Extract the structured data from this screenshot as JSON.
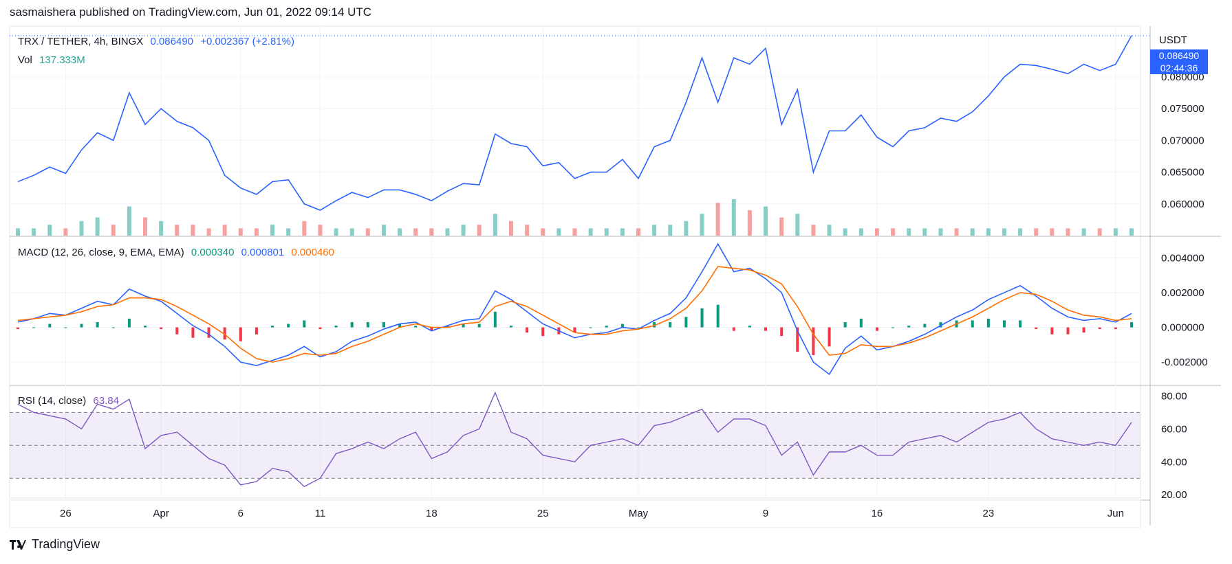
{
  "header": {
    "text": "sasmaishera published on TradingView.com, Jun 01, 2022 09:14 UTC"
  },
  "legend": {
    "symbol": "TRX / TETHER, 4h, BINGX",
    "last_price": "0.086490",
    "change": "+0.002367 (+2.81%)",
    "vol_label": "Vol",
    "vol_value": "137.333M",
    "macd_label": "MACD (12, 26, close, 9, EMA, EMA)",
    "macd_hist": "0.000340",
    "macd_line": "0.000801",
    "macd_signal": "0.000460",
    "rsi_label": "RSI (14, close)",
    "rsi_value": "63.84"
  },
  "price_axis": {
    "currency": "USDT",
    "price_tag": "0.086490",
    "countdown": "02:44:36"
  },
  "footer": {
    "brand": "TradingView"
  },
  "colors": {
    "price_line": "#2962ff",
    "macd_line": "#2962ff",
    "signal_line": "#ff6d00",
    "rsi_line": "#7e57c2",
    "hist_up": "#089981",
    "hist_down": "#f23645",
    "vol_up": "#26a69a",
    "vol_down": "#ef5350"
  },
  "chart_data": [
    {
      "type": "line",
      "name": "price",
      "x": [
        "Mar 23",
        "Mar 24",
        "Mar 25",
        "Mar 26",
        "Mar 27",
        "Mar 28",
        "Mar 29",
        "Mar 30",
        "Mar 31",
        "Apr 1",
        "Apr 2",
        "Apr 3",
        "Apr 4",
        "Apr 5",
        "Apr 6",
        "Apr 7",
        "Apr 8",
        "Apr 9",
        "Apr 10",
        "Apr 11",
        "Apr 12",
        "Apr 13",
        "Apr 14",
        "Apr 15",
        "Apr 16",
        "Apr 17",
        "Apr 18",
        "Apr 19",
        "Apr 20",
        "Apr 21",
        "Apr 22",
        "Apr 23",
        "Apr 24",
        "Apr 25",
        "Apr 26",
        "Apr 27",
        "Apr 28",
        "Apr 29",
        "Apr 30",
        "May 1",
        "May 2",
        "May 3",
        "May 4",
        "May 5",
        "May 6",
        "May 7",
        "May 8",
        "May 9",
        "May 10",
        "May 11",
        "May 12",
        "May 13",
        "May 14",
        "May 15",
        "May 16",
        "May 17",
        "May 18",
        "May 19",
        "May 20",
        "May 21",
        "May 22",
        "May 23",
        "May 24",
        "May 25",
        "May 26",
        "May 27",
        "May 28",
        "May 29",
        "May 30",
        "May 31",
        "Jun 1"
      ],
      "values": [
        0.0635,
        0.0645,
        0.0658,
        0.0648,
        0.0685,
        0.0712,
        0.07,
        0.0775,
        0.0725,
        0.075,
        0.073,
        0.072,
        0.07,
        0.0645,
        0.0625,
        0.0615,
        0.0635,
        0.0638,
        0.06,
        0.059,
        0.0605,
        0.0618,
        0.061,
        0.0622,
        0.0622,
        0.0615,
        0.0605,
        0.062,
        0.0632,
        0.063,
        0.071,
        0.0695,
        0.069,
        0.066,
        0.0665,
        0.064,
        0.065,
        0.065,
        0.067,
        0.064,
        0.069,
        0.07,
        0.076,
        0.083,
        0.076,
        0.083,
        0.082,
        0.0845,
        0.0725,
        0.078,
        0.065,
        0.0715,
        0.0715,
        0.074,
        0.0705,
        0.069,
        0.0715,
        0.072,
        0.0735,
        0.073,
        0.0745,
        0.077,
        0.08,
        0.082,
        0.0818,
        0.0812,
        0.0805,
        0.082,
        0.081,
        0.082,
        0.0865
      ],
      "ylim": [
        0.055,
        0.088
      ],
      "x_ticks": [
        "26",
        "Apr",
        "6",
        "11",
        "18",
        "25",
        "May",
        "9",
        "16",
        "23",
        "Jun"
      ],
      "y_ticks": [
        "0.060000",
        "0.065000",
        "0.070000",
        "0.075000",
        "0.080000"
      ]
    },
    {
      "type": "bar",
      "name": "volume",
      "values": [
        2,
        2,
        3,
        2,
        4,
        5,
        3,
        8,
        5,
        4,
        3,
        3,
        2,
        3,
        2,
        2,
        3,
        2,
        4,
        3,
        2,
        2,
        2,
        3,
        2,
        2,
        2,
        2,
        3,
        3,
        6,
        4,
        3,
        2,
        2,
        2,
        2,
        2,
        2,
        2,
        3,
        3,
        4,
        6,
        9,
        10,
        7,
        8,
        5,
        6,
        3,
        3,
        2,
        2,
        2,
        2,
        2,
        2,
        2,
        2,
        2,
        2,
        2,
        2,
        2,
        2,
        2,
        2,
        2,
        2,
        2
      ]
    },
    {
      "type": "line",
      "name": "MACD",
      "series": [
        {
          "name": "MACD",
          "values": [
            0.0003,
            0.0005,
            0.0008,
            0.0007,
            0.0011,
            0.0015,
            0.0013,
            0.0022,
            0.0018,
            0.0015,
            0.0008,
            0.0001,
            -0.0004,
            -0.0011,
            -0.002,
            -0.0022,
            -0.0019,
            -0.0016,
            -0.0011,
            -0.0017,
            -0.0014,
            -0.0008,
            -0.0005,
            -0.0001,
            0.0002,
            0.0003,
            -0.0002,
            0.0001,
            0.0004,
            0.0005,
            0.0021,
            0.0016,
            0.0009,
            0.0002,
            -0.0002,
            -0.0006,
            -0.0004,
            -0.0003,
            0.0,
            -0.0001,
            0.0004,
            0.0008,
            0.0017,
            0.0032,
            0.0048,
            0.0032,
            0.0034,
            0.0028,
            0.002,
            -0.0002,
            -0.002,
            -0.0027,
            -0.0012,
            -0.0005,
            -0.0013,
            -0.0011,
            -0.0008,
            -0.0004,
            0.0001,
            0.0006,
            0.001,
            0.0016,
            0.002,
            0.0024,
            0.0018,
            0.0011,
            0.0006,
            0.0004,
            0.0005,
            0.0003,
            0.0008
          ]
        },
        {
          "name": "Signal",
          "values": [
            0.0004,
            0.0005,
            0.0006,
            0.0007,
            0.0009,
            0.0012,
            0.0013,
            0.0017,
            0.0017,
            0.0016,
            0.0012,
            0.0007,
            0.0002,
            -0.0004,
            -0.0012,
            -0.0018,
            -0.002,
            -0.0018,
            -0.0015,
            -0.0016,
            -0.0015,
            -0.0011,
            -0.0008,
            -0.0004,
            0.0,
            0.0002,
            0.0,
            0.0,
            0.0002,
            0.0003,
            0.0012,
            0.0015,
            0.0012,
            0.0007,
            0.0002,
            -0.0003,
            -0.0004,
            -0.0004,
            -0.0002,
            -0.0001,
            0.0001,
            0.0005,
            0.0011,
            0.0021,
            0.0035,
            0.0034,
            0.0033,
            0.003,
            0.0025,
            0.0012,
            -0.0004,
            -0.0016,
            -0.0015,
            -0.001,
            -0.0011,
            -0.0011,
            -0.0009,
            -0.0006,
            -0.0002,
            0.0002,
            0.0006,
            0.0011,
            0.0016,
            0.002,
            0.0019,
            0.0015,
            0.001,
            0.0007,
            0.0006,
            0.0004,
            0.0005
          ]
        }
      ],
      "ylim": [
        -0.0033,
        0.0052
      ],
      "y_ticks": [
        "-0.002000",
        "0.000000",
        "0.002000",
        "0.004000"
      ]
    },
    {
      "type": "line",
      "name": "RSI",
      "values": [
        75,
        70,
        68,
        66,
        60,
        75,
        72,
        78,
        48,
        56,
        58,
        50,
        42,
        38,
        26,
        28,
        36,
        34,
        25,
        30,
        45,
        48,
        52,
        48,
        54,
        58,
        42,
        46,
        56,
        60,
        82,
        58,
        54,
        44,
        42,
        40,
        50,
        52,
        54,
        50,
        62,
        64,
        68,
        72,
        58,
        66,
        66,
        62,
        44,
        52,
        32,
        46,
        46,
        50,
        44,
        44,
        52,
        54,
        56,
        52,
        58,
        64,
        66,
        70,
        60,
        54,
        52,
        50,
        52,
        50,
        64
      ],
      "ylim": [
        18,
        86
      ],
      "y_ticks": [
        "20.00",
        "40.00",
        "60.00",
        "80.00"
      ],
      "bands": [
        30,
        50,
        70
      ]
    }
  ]
}
